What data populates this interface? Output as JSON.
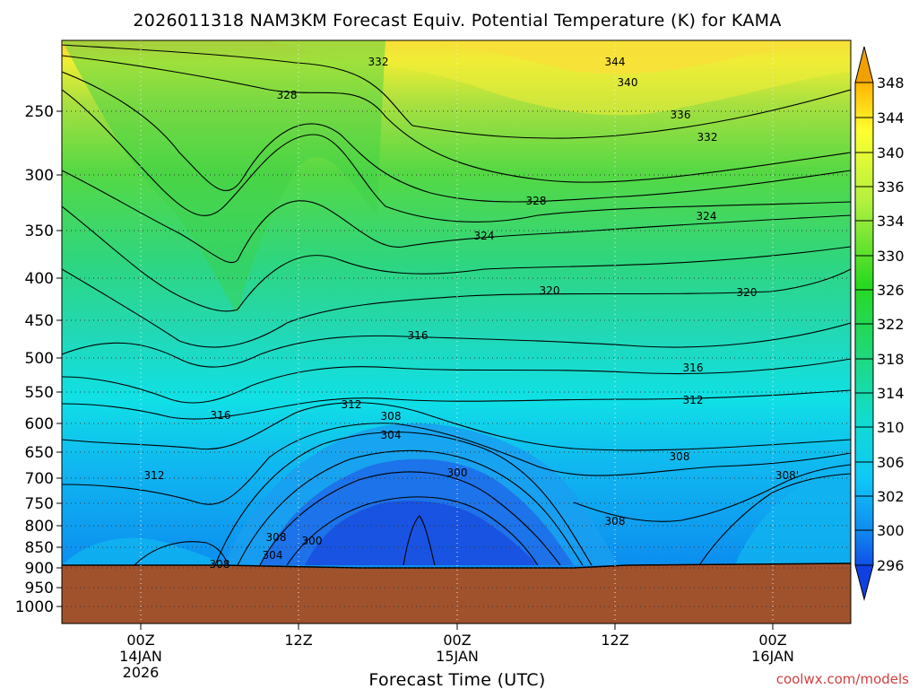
{
  "chart_data": {
    "type": "heatmap",
    "title": "2026011318 NAM3KM Forecast Equiv. Potential Temperature (K) for KAMA",
    "xlabel": "Forecast Time (UTC)",
    "ylabel": "",
    "y_axis_ticks": [
      "250",
      "300",
      "350",
      "400",
      "450",
      "500",
      "550",
      "600",
      "650",
      "700",
      "750",
      "800",
      "850",
      "900",
      "950",
      "1000"
    ],
    "x_axis_ticks": [
      {
        "lines": [
          "00Z",
          "14JAN",
          "2026"
        ]
      },
      {
        "lines": [
          "12Z"
        ]
      },
      {
        "lines": [
          "00Z",
          "15JAN"
        ]
      },
      {
        "lines": [
          "12Z"
        ]
      },
      {
        "lines": [
          "00Z",
          "16JAN"
        ]
      }
    ],
    "colorbar_levels": [
      "348",
      "344",
      "340",
      "336",
      "334",
      "330",
      "326",
      "322",
      "318",
      "314",
      "310",
      "306",
      "302",
      "300",
      "296"
    ],
    "contour_labels": [
      "332",
      "328",
      "344",
      "340",
      "336",
      "332",
      "328",
      "324",
      "324",
      "320",
      "320",
      "316",
      "316",
      "316",
      "312",
      "312",
      "308",
      "304",
      "300",
      "308",
      "312",
      "308",
      "308'",
      "308",
      "300",
      "304",
      "308"
    ],
    "grid": true,
    "underground_color": "#a0522d",
    "credit": "coolwx.com/models"
  }
}
